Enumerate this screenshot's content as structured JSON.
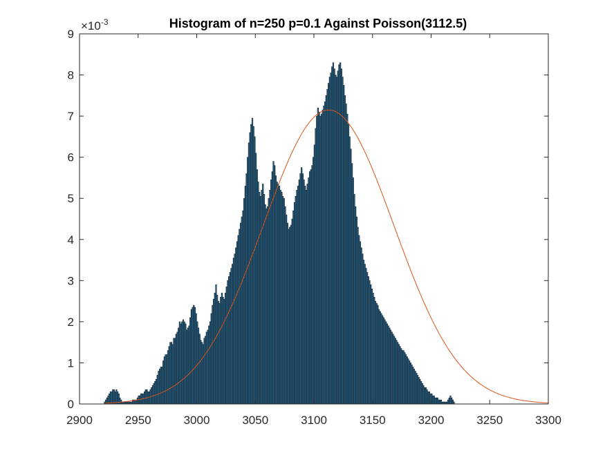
{
  "chart_data": {
    "type": "bar",
    "title": "Histogram of n=250 p=0.1 Against Poisson(3112.5)",
    "y_exponent": {
      "base": "×10",
      "power": "-3"
    },
    "xlim": [
      2900,
      3300
    ],
    "ylim": [
      0,
      9
    ],
    "x_ticks": [
      "2900",
      "2950",
      "3000",
      "3050",
      "3100",
      "3150",
      "3200",
      "3250",
      "3300"
    ],
    "y_ticks": [
      "0",
      "1",
      "2",
      "3",
      "4",
      "5",
      "6",
      "7",
      "8",
      "9"
    ],
    "grid": false,
    "colors": {
      "bar_fill": "#2a5f80",
      "bar_edge": "#0d1b26",
      "curve": "#d95319",
      "axis": "#262626"
    },
    "histogram": {
      "bin_start": 2921,
      "bin_width": 1,
      "values": [
        0.05,
        0.1,
        0.15,
        0.2,
        0.25,
        0.3,
        0.3,
        0.35,
        0.35,
        0.3,
        0.35,
        0.3,
        0.25,
        0.15,
        0.1,
        0.05,
        0.05,
        0.05,
        0.05,
        0.05,
        0.05,
        0.05,
        0.05,
        0.05,
        0.1,
        0.1,
        0.1,
        0.1,
        0.15,
        0.2,
        0.2,
        0.25,
        0.25,
        0.25,
        0.3,
        0.35,
        0.35,
        0.3,
        0.3,
        0.35,
        0.4,
        0.45,
        0.5,
        0.55,
        0.6,
        0.7,
        0.8,
        0.85,
        0.9,
        0.9,
        1.05,
        1.15,
        1.2,
        1.2,
        1.3,
        1.4,
        1.5,
        1.5,
        1.45,
        1.6,
        1.6,
        1.7,
        1.75,
        1.85,
        2.0,
        1.95,
        2.0,
        2.05,
        2.0,
        1.95,
        1.8,
        1.85,
        1.9,
        2.1,
        2.3,
        2.35,
        2.4,
        2.35,
        2.2,
        2.0,
        1.85,
        1.7,
        1.55,
        1.5,
        1.45,
        1.6,
        1.65,
        1.75,
        1.8,
        1.9,
        2.0,
        2.2,
        2.4,
        2.55,
        2.7,
        2.9,
        2.65,
        2.5,
        2.45,
        2.6,
        2.7,
        2.6,
        2.55,
        2.7,
        2.85,
        3.0,
        3.1,
        3.2,
        3.3,
        3.4,
        3.55,
        3.65,
        3.8,
        3.95,
        4.1,
        4.25,
        4.4,
        4.55,
        4.7,
        5.0,
        5.3,
        5.6,
        6.0,
        6.35,
        6.6,
        6.8,
        6.95,
        6.75,
        6.5,
        6.1,
        5.7,
        5.4,
        5.15,
        5.05,
        5.2,
        5.35,
        5.1,
        4.85,
        4.75,
        4.8,
        5.0,
        5.2,
        5.45,
        5.65,
        5.9,
        5.8,
        5.55,
        5.4,
        5.35,
        5.3,
        5.2,
        5.15,
        5.05,
        5.0,
        4.8,
        4.6,
        4.4,
        4.25,
        4.3,
        4.35,
        4.5,
        4.7,
        4.9,
        5.05,
        5.2,
        5.3,
        5.45,
        5.6,
        5.75,
        5.6,
        5.45,
        5.3,
        5.2,
        5.35,
        5.5,
        5.65,
        5.7,
        5.8,
        6.0,
        6.3,
        6.7,
        7.0,
        7.2,
        7.1,
        7.0,
        7.05,
        7.15,
        7.25,
        7.35,
        7.5,
        7.65,
        7.8,
        7.95,
        8.05,
        8.2,
        8.3,
        8.15,
        8.0,
        7.95,
        8.1,
        8.25,
        8.3,
        8.15,
        7.95,
        7.75,
        7.5,
        7.3,
        7.05,
        6.8,
        6.5,
        6.2,
        5.85,
        5.5,
        5.1,
        4.8,
        4.55,
        4.3,
        4.1,
        3.95,
        3.8,
        3.65,
        3.5,
        3.4,
        3.3,
        3.2,
        3.1,
        3.0,
        2.9,
        2.8,
        2.7,
        2.6,
        2.5,
        2.45,
        2.4,
        2.3,
        2.25,
        2.2,
        2.15,
        2.1,
        2.05,
        2.0,
        1.95,
        1.9,
        1.85,
        1.8,
        1.75,
        1.7,
        1.65,
        1.6,
        1.55,
        1.5,
        1.45,
        1.4,
        1.35,
        1.3,
        1.3,
        1.25,
        1.2,
        1.15,
        1.1,
        1.05,
        1.0,
        0.95,
        0.9,
        0.85,
        0.8,
        0.75,
        0.7,
        0.65,
        0.6,
        0.55,
        0.5,
        0.45,
        0.4,
        0.4,
        0.35,
        0.3,
        0.3,
        0.25,
        0.25,
        0.2,
        0.2,
        0.15,
        0.15,
        0.15,
        0.1,
        0.1,
        0.1,
        0.05,
        0.05,
        0.05,
        0.05,
        0.05,
        0.1,
        0.15,
        0.2,
        0.15,
        0.1,
        0.05
      ]
    },
    "series": [
      {
        "type": "line",
        "mean": 3112.5,
        "sd": 55.8,
        "peak": 7.15,
        "x_range": [
          2922,
          3300
        ]
      }
    ]
  }
}
